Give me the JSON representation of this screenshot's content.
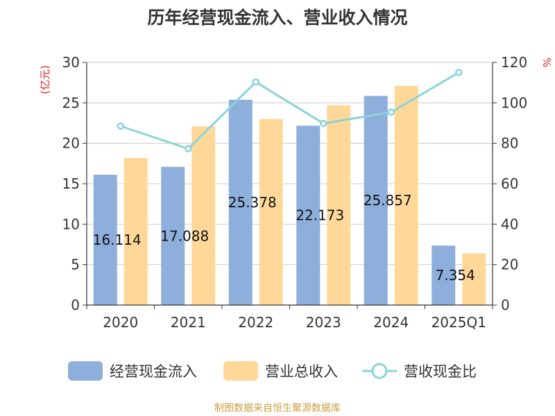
{
  "source_text": "制图数据来自恒生聚源数据库",
  "chart_data": {
    "type": "bar",
    "title": "历年经营现金流入、营业收入情况",
    "categories": [
      "2020",
      "2021",
      "2022",
      "2023",
      "2024",
      "2025Q1"
    ],
    "series": [
      {
        "name": "经营现金流入",
        "type": "bar",
        "axis": "left",
        "color": "#8eaedb",
        "values": [
          16.114,
          17.088,
          25.378,
          22.173,
          25.857,
          7.354
        ],
        "data_labels": [
          "16.114",
          "17.088",
          "25.378",
          "22.173",
          "25.857",
          "7.354"
        ]
      },
      {
        "name": "营业总收入",
        "type": "bar",
        "axis": "left",
        "color": "#ffd899",
        "values": [
          18.2,
          22.1,
          23.0,
          24.7,
          27.1,
          6.4
        ]
      },
      {
        "name": "营收现金比",
        "type": "line",
        "axis": "right",
        "color": "#88d4d8",
        "values": [
          88.5,
          77.3,
          110.3,
          89.8,
          95.4,
          115
        ]
      }
    ],
    "y_left": {
      "label": "(亿元)",
      "min": 0,
      "max": 30,
      "ticks": [
        0,
        5,
        10,
        15,
        20,
        25,
        30
      ]
    },
    "y_right": {
      "label": "%",
      "min": 0,
      "max": 120,
      "ticks": [
        0,
        20,
        40,
        60,
        80,
        100,
        120
      ]
    },
    "grid": true,
    "legend_position": "bottom"
  }
}
